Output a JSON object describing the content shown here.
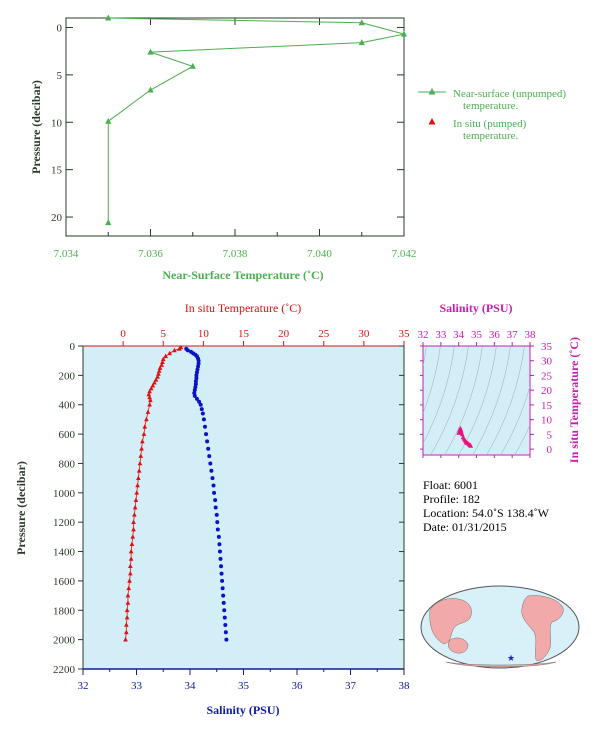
{
  "colors": {
    "green": "#4caf50",
    "temp_red": "#e01010",
    "sal_blue": "#0a12c8",
    "magenta": "#c81eb4",
    "sal_axis_blue": "#101aa0",
    "axis_gray": "#2a3a2a",
    "panel_fill": "#d4eef8",
    "land": "#f2a9a9",
    "ocean": "#d8f0f8"
  },
  "chart_data": [
    {
      "type": "line",
      "xlabel": "Near-Surface Temperature (˚C)",
      "ylabel": "Pressure (decibar)",
      "xlim": [
        7.034,
        7.042
      ],
      "ylim": [
        22,
        -1
      ],
      "xticks": [
        "7.034",
        "7.036",
        "7.038",
        "7.040",
        "7.042"
      ],
      "yticks": [
        "0",
        "5",
        "10",
        "15",
        "20"
      ],
      "series": [
        {
          "name": "Near-surface (unpumped) temperature.",
          "marker": "triangle",
          "points": [
            [
              7.035,
              -1.0
            ],
            [
              7.041,
              -0.5
            ],
            [
              7.042,
              0.7
            ],
            [
              7.041,
              1.6
            ],
            [
              7.036,
              2.6
            ],
            [
              7.037,
              4.1
            ],
            [
              7.036,
              6.6
            ],
            [
              7.035,
              9.9
            ],
            [
              7.035,
              20.6
            ]
          ]
        },
        {
          "name": "In situ (pumped) temperature.",
          "marker": "triangle",
          "points": []
        }
      ]
    },
    {
      "type": "scatter",
      "x_top_label": "In situ Temperature (˚C)",
      "x_bottom_label": "Salinity (PSU)",
      "ylabel": "Pressure (decibar)",
      "temp_lim": [
        -5,
        35
      ],
      "sal_lim": [
        32,
        38
      ],
      "ylim": [
        2200,
        0
      ],
      "temp_ticks": [
        "0",
        "5",
        "10",
        "15",
        "20",
        "25",
        "30",
        "35"
      ],
      "sal_ticks": [
        "32",
        "33",
        "34",
        "35",
        "36",
        "37",
        "38"
      ],
      "yticks": [
        "0",
        "200",
        "400",
        "600",
        "800",
        "1000",
        "1200",
        "1400",
        "1600",
        "1800",
        "2000",
        "2200"
      ],
      "temperature_profile": [
        [
          7.2,
          10
        ],
        [
          7.0,
          20
        ],
        [
          6.4,
          30
        ],
        [
          5.8,
          50
        ],
        [
          5.3,
          70
        ],
        [
          5.0,
          90
        ],
        [
          4.9,
          110
        ],
        [
          4.8,
          130
        ],
        [
          4.6,
          150
        ],
        [
          4.5,
          170
        ],
        [
          4.4,
          190
        ],
        [
          4.3,
          210
        ],
        [
          4.1,
          230
        ],
        [
          3.9,
          250
        ],
        [
          3.7,
          270
        ],
        [
          3.5,
          290
        ],
        [
          3.3,
          310
        ],
        [
          3.2,
          330
        ],
        [
          3.3,
          350
        ],
        [
          3.4,
          370
        ],
        [
          3.3,
          400
        ],
        [
          3.1,
          450
        ],
        [
          2.9,
          500
        ],
        [
          2.7,
          550
        ],
        [
          2.6,
          600
        ],
        [
          2.4,
          650
        ],
        [
          2.3,
          700
        ],
        [
          2.2,
          750
        ],
        [
          2.1,
          800
        ],
        [
          2.0,
          850
        ],
        [
          1.9,
          900
        ],
        [
          1.8,
          950
        ],
        [
          1.7,
          1000
        ],
        [
          1.6,
          1050
        ],
        [
          1.5,
          1100
        ],
        [
          1.4,
          1150
        ],
        [
          1.3,
          1200
        ],
        [
          1.3,
          1250
        ],
        [
          1.2,
          1300
        ],
        [
          1.1,
          1350
        ],
        [
          1.0,
          1400
        ],
        [
          1.0,
          1450
        ],
        [
          0.9,
          1500
        ],
        [
          0.9,
          1550
        ],
        [
          0.8,
          1600
        ],
        [
          0.7,
          1650
        ],
        [
          0.6,
          1700
        ],
        [
          0.6,
          1750
        ],
        [
          0.5,
          1800
        ],
        [
          0.5,
          1850
        ],
        [
          0.4,
          1900
        ],
        [
          0.4,
          1950
        ],
        [
          0.3,
          2000
        ]
      ],
      "salinity_profile": [
        [
          33.93,
          20
        ],
        [
          33.96,
          30
        ],
        [
          34.02,
          40
        ],
        [
          34.06,
          50
        ],
        [
          34.1,
          60
        ],
        [
          34.13,
          70
        ],
        [
          34.15,
          85
        ],
        [
          34.16,
          100
        ],
        [
          34.16,
          120
        ],
        [
          34.15,
          140
        ],
        [
          34.14,
          160
        ],
        [
          34.13,
          180
        ],
        [
          34.12,
          200
        ],
        [
          34.12,
          220
        ],
        [
          34.11,
          240
        ],
        [
          34.11,
          260
        ],
        [
          34.1,
          280
        ],
        [
          34.09,
          300
        ],
        [
          34.08,
          320
        ],
        [
          34.09,
          340
        ],
        [
          34.13,
          360
        ],
        [
          34.17,
          380
        ],
        [
          34.2,
          400
        ],
        [
          34.22,
          430
        ],
        [
          34.24,
          460
        ],
        [
          34.26,
          500
        ],
        [
          34.28,
          550
        ],
        [
          34.3,
          600
        ],
        [
          34.32,
          650
        ],
        [
          34.34,
          700
        ],
        [
          34.36,
          750
        ],
        [
          34.38,
          800
        ],
        [
          34.4,
          850
        ],
        [
          34.42,
          900
        ],
        [
          34.44,
          950
        ],
        [
          34.45,
          1000
        ],
        [
          34.47,
          1050
        ],
        [
          34.48,
          1100
        ],
        [
          34.5,
          1150
        ],
        [
          34.51,
          1200
        ],
        [
          34.52,
          1250
        ],
        [
          34.54,
          1300
        ],
        [
          34.55,
          1350
        ],
        [
          34.56,
          1400
        ],
        [
          34.57,
          1450
        ],
        [
          34.58,
          1500
        ],
        [
          34.59,
          1550
        ],
        [
          34.6,
          1600
        ],
        [
          34.61,
          1650
        ],
        [
          34.62,
          1700
        ],
        [
          34.63,
          1750
        ],
        [
          34.64,
          1800
        ],
        [
          34.65,
          1850
        ],
        [
          34.66,
          1900
        ],
        [
          34.67,
          1950
        ],
        [
          34.68,
          2000
        ]
      ]
    },
    {
      "type": "scatter",
      "title": "Salinity (PSU)",
      "ylabel": "In situ Temperature (˚C)",
      "xlim": [
        32,
        38
      ],
      "ylim": [
        -2,
        35
      ],
      "xticks": [
        "32",
        "33",
        "34",
        "35",
        "36",
        "37",
        "38"
      ],
      "yticks": [
        "0",
        "5",
        "10",
        "15",
        "20",
        "25",
        "30",
        "35"
      ],
      "points": [
        [
          34.0,
          5.5
        ],
        [
          34.05,
          6.5
        ],
        [
          34.1,
          7.0
        ],
        [
          34.15,
          6.2
        ],
        [
          34.2,
          5.0
        ],
        [
          34.25,
          4.0
        ],
        [
          34.3,
          3.5
        ],
        [
          34.35,
          3.0
        ],
        [
          34.4,
          2.5
        ],
        [
          34.45,
          2.2
        ],
        [
          34.5,
          2.0
        ],
        [
          34.55,
          1.8
        ],
        [
          34.6,
          1.5
        ],
        [
          34.65,
          1.3
        ],
        [
          34.68,
          1.1
        ],
        [
          34.15,
          5.5
        ],
        [
          34.1,
          6.0
        ]
      ]
    }
  ],
  "float_info": {
    "float": "Float:  6001",
    "profile": "Profile:  182",
    "location": "Location:  54.0˚S  138.4˚W",
    "date": "Date:  01/31/2015"
  }
}
